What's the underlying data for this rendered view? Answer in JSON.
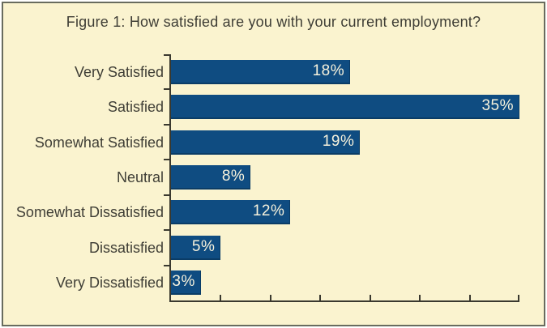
{
  "figure": {
    "background_color": "#FAF3CF",
    "border_color": "#686B5E"
  },
  "chart_data": {
    "type": "bar",
    "orientation": "horizontal",
    "title": "Figure 1: How satisfied are you with your current employment?",
    "categories": [
      "Very Satisfied",
      "Satisfied",
      "Somewhat Satisfied",
      "Neutral",
      "Somewhat Dissatisfied",
      "Dissatisfied",
      "Very Dissatisfied"
    ],
    "values": [
      18,
      35,
      19,
      8,
      12,
      5,
      3
    ],
    "value_unit": "%",
    "value_labels": [
      "18%",
      "35%",
      "19%",
      "8%",
      "12%",
      "5%",
      "3%"
    ],
    "xlabel": "",
    "ylabel": "",
    "xlim": [
      0,
      35
    ],
    "x_tick_step": 5,
    "x_tick_labels_visible": false,
    "grid": false,
    "legend": false,
    "bar_color": "#0F4C81",
    "bar_edge_color": "#0A3C66",
    "value_label_color": "#F7F2DC",
    "axis_color": "#3A392F",
    "text_color": "#3F3E36"
  }
}
